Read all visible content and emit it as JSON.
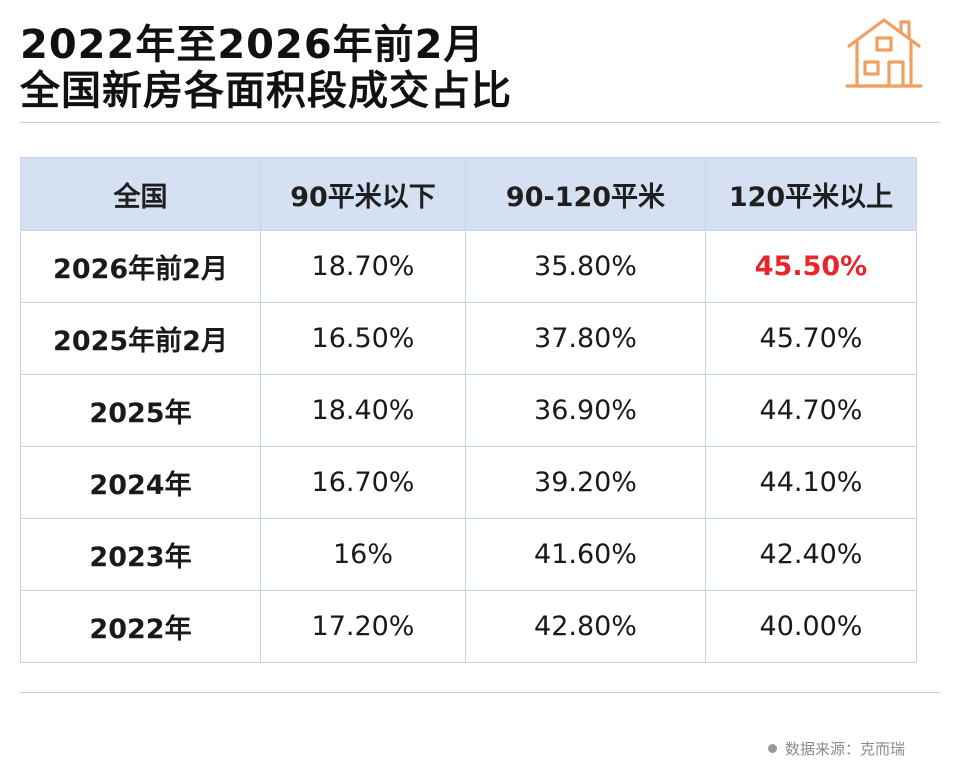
{
  "title": {
    "line1": "2022年至2026年前2月",
    "line2": "全国新房各面积段成交占比"
  },
  "table": {
    "headers": [
      "全国",
      "90平米以下",
      "90-120平米",
      "120平米以上"
    ],
    "rows": [
      {
        "label": "2026年前2月",
        "cells": [
          "18.70%",
          "35.80%",
          "45.50%"
        ]
      },
      {
        "label": "2025年前2月",
        "cells": [
          "16.50%",
          "37.80%",
          "45.70%"
        ]
      },
      {
        "label": "2025年",
        "cells": [
          "18.40%",
          "36.90%",
          "44.70%"
        ]
      },
      {
        "label": "2024年",
        "cells": [
          "16.70%",
          "39.20%",
          "44.10%"
        ]
      },
      {
        "label": "2023年",
        "cells": [
          "16%",
          "41.60%",
          "42.40%"
        ]
      },
      {
        "label": "2022年",
        "cells": [
          "17.20%",
          "42.80%",
          "40.00%"
        ]
      }
    ]
  },
  "source": {
    "text": "数据来源：克而瑞"
  },
  "colors": {
    "header_bg": "#d5e0f2",
    "border": "#c5d4ec",
    "highlight": "#e8262a",
    "logo": "#f0a060"
  },
  "icons": {
    "logo": "house-icon",
    "source_marker": "dot-icon"
  }
}
